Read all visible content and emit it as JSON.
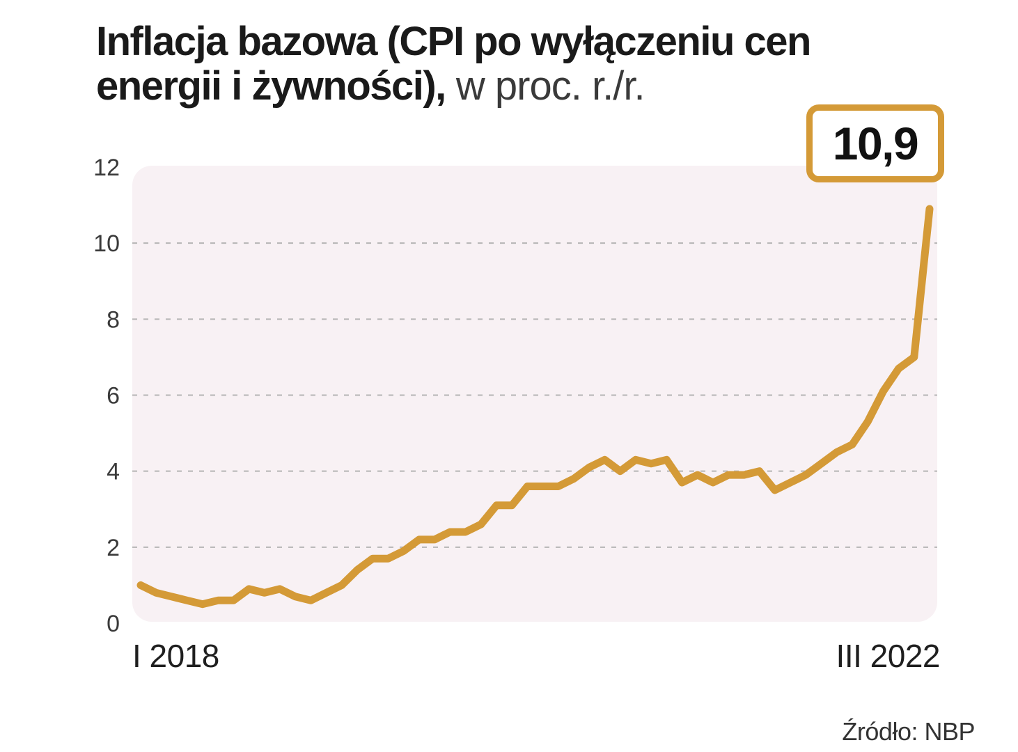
{
  "title": {
    "bold": "Inflacja bazowa (CPI po wyłączeniu cen energii i żywności),",
    "light": " w proc. r./r."
  },
  "callout": {
    "value_label": "10,9",
    "value": 10.9
  },
  "source": "Źródło: NBP",
  "colors": {
    "line": "#d49a37",
    "plot_bg": "#f8f1f4",
    "grid": "#b5b5b5"
  },
  "chart_data": {
    "type": "line",
    "title": "Inflacja bazowa (CPI po wyłączeniu cen energii i żywności), w proc. r./r.",
    "xlabel": "",
    "ylabel": "",
    "x_start": "I 2018",
    "x_end": "III 2022",
    "x_tick_labels": [
      "I 2018",
      "III 2022"
    ],
    "y_ticks": [
      0,
      2,
      4,
      6,
      8,
      10,
      12
    ],
    "ylim": [
      0,
      12
    ],
    "grid": "horizontal dashed",
    "series": [
      {
        "name": "",
        "values": [
          1.0,
          0.8,
          0.7,
          0.6,
          0.5,
          0.6,
          0.6,
          0.9,
          0.8,
          0.9,
          0.7,
          0.6,
          0.8,
          1.0,
          1.4,
          1.7,
          1.7,
          1.9,
          2.2,
          2.2,
          2.4,
          2.4,
          2.6,
          3.1,
          3.1,
          3.6,
          3.6,
          3.6,
          3.8,
          4.1,
          4.3,
          4.0,
          4.3,
          4.2,
          4.3,
          3.7,
          3.9,
          3.7,
          3.9,
          3.9,
          4.0,
          3.5,
          3.7,
          3.9,
          4.2,
          4.5,
          4.7,
          5.3,
          6.1,
          6.7,
          7.0,
          10.9
        ]
      }
    ]
  }
}
